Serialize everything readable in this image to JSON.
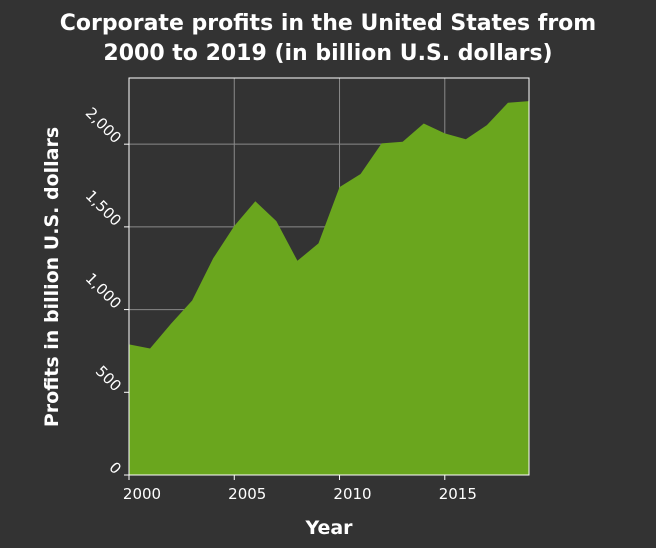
{
  "chart_data": {
    "type": "area",
    "title_lines": [
      "Corporate profits in the United States from",
      "2000 to 2019 (in billion U.S. dollars)"
    ],
    "xlabel": "Year",
    "ylabel": "Profits in billion U.S. dollars",
    "xlim": [
      2000,
      2019
    ],
    "ylim": [
      0,
      2400
    ],
    "x_ticks": [
      2000,
      2005,
      2010,
      2015
    ],
    "y_ticks": [
      0,
      500,
      1000,
      1500,
      2000
    ],
    "y_tick_labels": [
      "0",
      "500",
      "1,000",
      "1,500",
      "2,000"
    ],
    "grid": true,
    "fill_color": "#6aa61e",
    "background_color": "#333333",
    "series": [
      {
        "x": [
          2000,
          2001,
          2002,
          2003,
          2004,
          2005,
          2006,
          2007,
          2008,
          2009,
          2010,
          2011,
          2012,
          2013,
          2014,
          2015,
          2016,
          2017,
          2018,
          2019
        ],
        "values": [
          790,
          765,
          915,
          1055,
          1310,
          1505,
          1655,
          1535,
          1295,
          1400,
          1740,
          1820,
          2005,
          2015,
          2125,
          2065,
          2030,
          2115,
          2250,
          2260
        ]
      }
    ]
  }
}
